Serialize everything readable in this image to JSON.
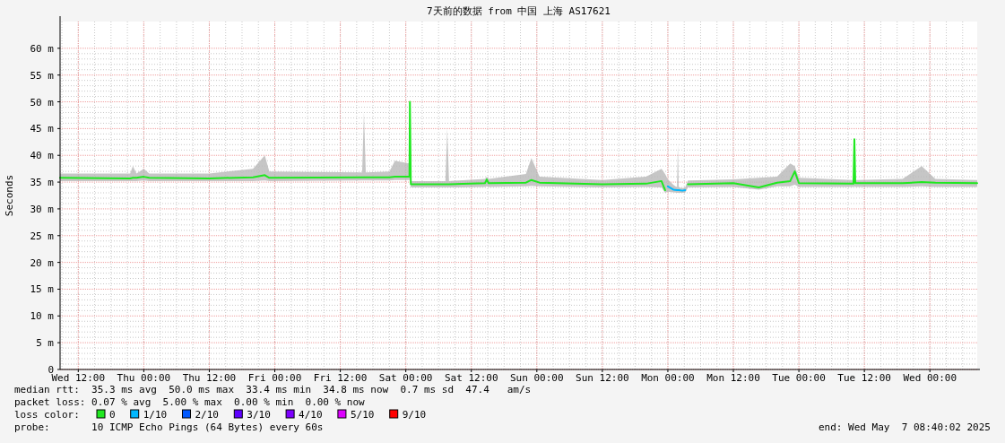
{
  "chart_data": {
    "type": "line",
    "title": "7天前的数据 from 中国 上海 AS17621",
    "ylabel": "Seconds",
    "xlim": [
      "2025-04-30T08:40",
      "2025-05-07T08:40"
    ],
    "xticks": [
      {
        "value": "2025-04-30T12:00",
        "label": "Wed 12:00"
      },
      {
        "value": "2025-05-01T00:00",
        "label": "Thu 00:00"
      },
      {
        "value": "2025-05-01T12:00",
        "label": "Thu 12:00"
      },
      {
        "value": "2025-05-02T00:00",
        "label": "Fri 00:00"
      },
      {
        "value": "2025-05-02T12:00",
        "label": "Fri 12:00"
      },
      {
        "value": "2025-05-03T00:00",
        "label": "Sat 00:00"
      },
      {
        "value": "2025-05-03T12:00",
        "label": "Sat 12:00"
      },
      {
        "value": "2025-05-04T00:00",
        "label": "Sun 00:00"
      },
      {
        "value": "2025-05-04T12:00",
        "label": "Sun 12:00"
      },
      {
        "value": "2025-05-05T00:00",
        "label": "Mon 00:00"
      },
      {
        "value": "2025-05-05T12:00",
        "label": "Mon 12:00"
      },
      {
        "value": "2025-05-06T00:00",
        "label": "Tue 00:00"
      },
      {
        "value": "2025-05-06T12:00",
        "label": "Tue 12:00"
      },
      {
        "value": "2025-05-07T00:00",
        "label": "Wed 00:00"
      }
    ],
    "ylim": [
      0,
      65
    ],
    "yticks": [
      0,
      {
        "value": 5,
        "label": "5 m"
      },
      {
        "value": 10,
        "label": "10 m"
      },
      {
        "value": 15,
        "label": "15 m"
      },
      {
        "value": 20,
        "label": "20 m"
      },
      {
        "value": 25,
        "label": "25 m"
      },
      {
        "value": 30,
        "label": "30 m"
      },
      {
        "value": 35,
        "label": "35 m"
      },
      {
        "value": 40,
        "label": "40 m"
      },
      {
        "value": 45,
        "label": "45 m"
      },
      {
        "value": 50,
        "label": "50 m"
      },
      {
        "value": 55,
        "label": "55 m"
      },
      {
        "value": 60,
        "label": "60 m"
      }
    ],
    "grid": true,
    "legend": "bottom",
    "legend_title": "loss color:",
    "series": [
      {
        "name": "0",
        "color": "#20e820",
        "x": [
          "2025-04-30T08:40",
          "2025-04-30T21:30",
          "2025-04-30T22:00",
          "2025-04-30T22:40",
          "2025-05-01T00:00",
          "2025-05-01T01:00",
          "2025-05-01T12:00",
          "2025-05-01T20:00",
          "2025-05-01T22:10",
          "2025-05-01T23:00",
          "2025-05-02T16:00",
          "2025-05-02T16:20",
          "2025-05-02T16:40",
          "2025-05-02T21:00",
          "2025-05-02T22:00",
          "2025-05-03T00:40",
          "2025-05-03T00:45",
          "2025-05-03T00:55",
          "2025-05-03T07:15",
          "2025-05-03T07:35",
          "2025-05-03T07:55",
          "2025-05-03T14:30",
          "2025-05-03T14:50",
          "2025-05-03T15:10",
          "2025-05-03T22:00",
          "2025-05-03T23:00",
          "2025-05-04T00:30",
          "2025-05-04T12:00",
          "2025-05-04T20:00",
          "2025-05-04T22:50",
          "2025-05-04T23:30",
          "2025-05-05T00:00",
          "2025-05-05T01:00",
          "2025-05-05T01:40",
          "2025-05-05T01:50",
          "2025-05-05T02:00",
          "2025-05-05T02:40",
          "2025-05-05T03:10",
          "2025-05-05T03:40",
          "2025-05-05T12:00",
          "2025-05-05T16:40",
          "2025-05-05T20:00",
          "2025-05-05T22:25",
          "2025-05-05T23:15",
          "2025-05-06T00:00",
          "2025-05-06T10:00",
          "2025-05-06T10:10",
          "2025-05-06T10:20",
          "2025-05-06T19:00",
          "2025-05-06T22:30",
          "2025-05-07T01:00",
          "2025-05-07T08:40"
        ],
        "values": [
          35.8,
          35.7,
          35.8,
          35.8,
          36.0,
          35.8,
          35.7,
          35.9,
          36.3,
          35.8,
          35.9,
          35.9,
          35.9,
          35.9,
          36.0,
          36.0,
          50.0,
          34.6,
          34.6,
          34.6,
          34.6,
          34.8,
          35.5,
          34.8,
          34.9,
          35.4,
          34.9,
          34.6,
          34.7,
          35.2,
          33.5,
          null,
          null,
          null,
          null,
          null,
          null,
          null,
          34.6,
          34.8,
          34.0,
          34.9,
          35.2,
          37.0,
          34.8,
          34.7,
          43.0,
          34.8,
          34.8,
          35.0,
          34.9,
          34.8
        ],
        "lower": [
          35.2,
          35.2,
          35.2,
          35.2,
          35.3,
          35.2,
          35.2,
          35.2,
          35.3,
          35.2,
          35.3,
          35.3,
          35.3,
          35.3,
          35.4,
          35.4,
          35.5,
          34.0,
          34.0,
          34.0,
          34.0,
          34.1,
          34.2,
          34.1,
          34.2,
          34.3,
          34.2,
          34.0,
          34.1,
          34.0,
          33.0,
          33.2,
          33.1,
          33.0,
          33.0,
          33.0,
          33.0,
          33.0,
          34.0,
          34.1,
          33.6,
          34.2,
          34.2,
          34.5,
          34.1,
          34.1,
          34.2,
          34.1,
          34.1,
          34.2,
          34.1,
          34.1
        ],
        "upper": [
          36.6,
          36.6,
          38.0,
          36.6,
          37.5,
          36.6,
          36.6,
          37.5,
          40.0,
          37.0,
          36.8,
          48.0,
          36.8,
          37.0,
          39.0,
          38.5,
          50.5,
          35.2,
          35.2,
          45.0,
          35.2,
          35.6,
          36.0,
          35.6,
          36.5,
          39.5,
          36.0,
          35.4,
          36.0,
          37.5,
          36.5,
          35.5,
          34.5,
          34.0,
          42.0,
          34.0,
          33.9,
          34.0,
          35.3,
          35.5,
          35.8,
          36.0,
          38.5,
          38.0,
          35.8,
          35.4,
          43.0,
          35.4,
          35.6,
          38.0,
          35.6,
          35.4
        ]
      },
      {
        "name": "1/10",
        "color": "#00b8ff",
        "x": [
          "2025-05-05T00:00",
          "2025-05-05T01:00",
          "2025-05-05T01:40",
          "2025-05-05T01:50",
          "2025-05-05T02:00",
          "2025-05-05T02:40",
          "2025-05-05T03:10"
        ],
        "values": [
          34.2,
          33.6,
          33.5,
          33.5,
          33.5,
          33.4,
          33.5
        ]
      },
      {
        "name": "2/10",
        "color": "#0059ff"
      },
      {
        "name": "3/10",
        "color": "#5e00ff"
      },
      {
        "name": "4/10",
        "color": "#7e00ff"
      },
      {
        "name": "5/10",
        "color": "#dd00ff"
      },
      {
        "name": "9/10",
        "color": "#ff0000"
      }
    ],
    "annotations": [
      "median rtt:  35.3 ms avg  50.0 ms max  33.4 ms min  34.8 ms now  0.7 ms sd  47.4   am/s",
      "packet loss: 0.07 % avg  5.00 % max  0.00 % min  0.00 % now",
      "probe:       10 ICMP Echo Pings (64 Bytes) every 60s",
      "end: Wed May  7 08:40:02 2025"
    ]
  }
}
